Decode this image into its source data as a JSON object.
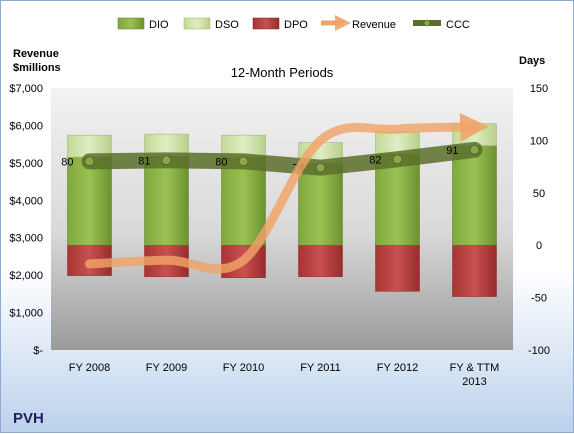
{
  "company": "PVH",
  "chart_data": {
    "type": "bar",
    "title": "12-Month Periods",
    "categories": [
      "FY 2008",
      "FY 2009",
      "FY 2010",
      "FY 2011",
      "FY 2012",
      "FY & TTM|2013"
    ],
    "left_axis": {
      "label_line1": "Revenue",
      "label_line2": "$millions",
      "ylim": [
        0,
        7000
      ],
      "ticks": [
        0,
        1000,
        2000,
        3000,
        4000,
        5000,
        6000,
        7000
      ],
      "tick_labels": [
        "$-",
        "$1,000",
        "$2,000",
        "$3,000",
        "$4,000",
        "$5,000",
        "$6,000",
        "$7,000"
      ]
    },
    "right_axis": {
      "label": "Days",
      "ylim": [
        -100,
        150
      ],
      "ticks": [
        -100,
        -50,
        0,
        50,
        100,
        150
      ],
      "tick_labels": [
        "-100",
        "-50",
        "0",
        "50",
        "100",
        "150"
      ]
    },
    "legend_position": "top",
    "legend": [
      "DIO",
      "DSO",
      "DPO",
      "Revenue",
      "CCC"
    ],
    "series": [
      {
        "name": "DIO",
        "type": "bar",
        "axis": "right",
        "values": [
          84,
          85,
          84,
          78,
          87,
          95
        ],
        "color": "#6f9a32"
      },
      {
        "name": "DSO",
        "type": "bar",
        "axis": "right",
        "values": [
          21,
          21,
          21,
          20,
          21,
          21
        ],
        "color": "#c9dca0"
      },
      {
        "name": "DPO",
        "type": "bar",
        "axis": "right",
        "values": [
          -29,
          -30,
          -31,
          -30,
          -44,
          -49
        ],
        "color": "#b33a3a"
      },
      {
        "name": "Revenue",
        "type": "line",
        "axis": "left",
        "values": [
          2300,
          2400,
          2400,
          5600,
          5900,
          5960
        ],
        "color": "#f0a468"
      },
      {
        "name": "CCC",
        "type": "line",
        "axis": "right",
        "values": [
          80,
          81,
          80,
          74,
          82,
          91
        ],
        "color": "#5a6e2c"
      }
    ],
    "ccc_labels": [
      "80",
      "81",
      "80",
      "74",
      "82",
      "91"
    ]
  }
}
